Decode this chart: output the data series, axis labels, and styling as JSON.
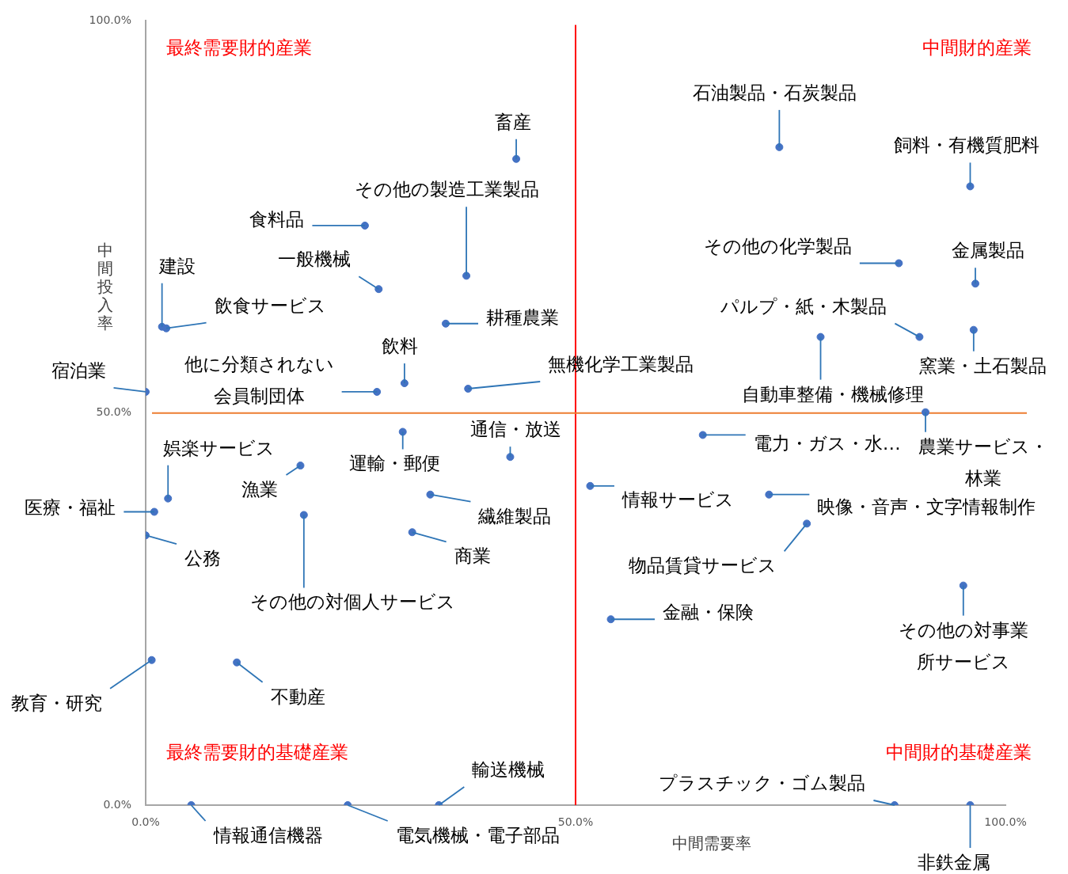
{
  "chart_data": {
    "type": "scatter",
    "xlabel": "中間需要率",
    "ylabel": "中間投入率",
    "x": [
      43.1,
      73.7,
      95.9,
      37.3,
      25.5,
      27.1,
      87.6,
      96.5,
      1.9,
      2.4,
      34.9,
      90.0,
      96.3,
      78.5,
      30.1,
      26.9,
      37.5,
      0,
      90.7,
      64.8,
      29.9,
      42.4,
      2.6,
      18.0,
      1.0,
      33.1,
      51.7,
      72.5,
      76.9,
      31.0,
      0,
      18.4,
      54.1,
      95.1,
      0.7,
      10.6,
      34.1,
      5.3,
      23.5,
      87.1,
      95.9
    ],
    "series": [
      {
        "color": "#4472c4",
        "values": [
          82.4,
          83.9,
          78.9,
          67.5,
          73.9,
          65.8,
          69.1,
          66.5,
          61.0,
          60.8,
          61.4,
          59.7,
          60.6,
          59.7,
          53.8,
          52.7,
          53.1,
          52.7,
          50.1,
          47.2,
          47.6,
          44.4,
          39.1,
          43.3,
          37.4,
          39.6,
          40.7,
          39.6,
          35.9,
          34.8,
          34.4,
          37.0,
          23.7,
          28.0,
          18.5,
          18.2,
          0,
          0,
          0,
          0,
          0
        ]
      }
    ],
    "xlim": [
      0,
      100
    ],
    "ylim": [
      0,
      100
    ],
    "xticks": [
      {
        "value": 0,
        "label": "0.0%"
      },
      {
        "value": 50,
        "label": "50.0%"
      },
      {
        "value": 100,
        "label": "100.0%"
      }
    ],
    "yticks": [
      {
        "value": 0,
        "label": "0.0%"
      },
      {
        "value": 50,
        "label": "50.0%"
      },
      {
        "value": 100,
        "label": "100.0%"
      }
    ],
    "grid": false,
    "legend": false,
    "marker": "circle",
    "ref_lines": [
      {
        "axis": "x",
        "value": 50,
        "color": "#ff0000"
      },
      {
        "axis": "y",
        "value": 50,
        "color": "#ed7d31"
      }
    ],
    "annotations": [
      {
        "text": "畜産",
        "x": 43.1,
        "y": 82.4
      },
      {
        "text": "石油製品・石炭製品",
        "x": 73.7,
        "y": 83.9
      },
      {
        "text": "飼料・有機質肥料",
        "x": 95.9,
        "y": 78.9
      },
      {
        "text": "その他の製造工業製品",
        "x": 37.3,
        "y": 67.5
      },
      {
        "text": "食料品",
        "x": 25.5,
        "y": 73.9
      },
      {
        "text": "一般機械",
        "x": 27.1,
        "y": 65.8
      },
      {
        "text": "その他の化学製品",
        "x": 87.6,
        "y": 69.1
      },
      {
        "text": "金属製品",
        "x": 96.5,
        "y": 66.5
      },
      {
        "text": "建設",
        "x": 1.9,
        "y": 61.0
      },
      {
        "text": "飲食サービス",
        "x": 2.4,
        "y": 60.8
      },
      {
        "text": "耕種農業",
        "x": 34.9,
        "y": 61.4
      },
      {
        "text": "パルプ・紙・木製品",
        "x": 90.0,
        "y": 59.7
      },
      {
        "text": "窯業・土石製品",
        "x": 96.3,
        "y": 60.6
      },
      {
        "text": "自動車整備・機械修理",
        "x": 78.5,
        "y": 59.7
      },
      {
        "text": "飲料",
        "x": 30.1,
        "y": 53.8
      },
      {
        "text": "他に分類されない会員制団体",
        "x": 26.9,
        "y": 52.7
      },
      {
        "text": "無機化学工業製品",
        "x": 37.5,
        "y": 53.1
      },
      {
        "text": "宿泊業",
        "x": 0,
        "y": 52.7
      },
      {
        "text": "農業サービス・林業",
        "x": 90.7,
        "y": 50.1
      },
      {
        "text": "電力・ガス・水…",
        "x": 64.8,
        "y": 47.2
      },
      {
        "text": "運輸・郵便",
        "x": 29.9,
        "y": 47.6
      },
      {
        "text": "通信・放送",
        "x": 42.4,
        "y": 44.4
      },
      {
        "text": "娯楽サービス",
        "x": 2.6,
        "y": 39.1
      },
      {
        "text": "漁業",
        "x": 18.0,
        "y": 43.3
      },
      {
        "text": "医療・福祉",
        "x": 1.0,
        "y": 37.4
      },
      {
        "text": "繊維製品",
        "x": 33.1,
        "y": 39.6
      },
      {
        "text": "情報サービス",
        "x": 51.7,
        "y": 40.7
      },
      {
        "text": "映像・音声・文字情報制作",
        "x": 72.5,
        "y": 39.6
      },
      {
        "text": "物品賃貸サービス",
        "x": 76.9,
        "y": 35.9
      },
      {
        "text": "商業",
        "x": 31.0,
        "y": 34.8
      },
      {
        "text": "公務",
        "x": 0,
        "y": 34.4
      },
      {
        "text": "その他の対個人サービス",
        "x": 18.4,
        "y": 37.0
      },
      {
        "text": "金融・保険",
        "x": 54.1,
        "y": 23.7
      },
      {
        "text": "その他の対事業所サービス",
        "x": 95.1,
        "y": 28.0
      },
      {
        "text": "教育・研究",
        "x": 0.7,
        "y": 18.5
      },
      {
        "text": "不動産",
        "x": 10.6,
        "y": 18.2
      },
      {
        "text": "輸送機械",
        "x": 34.1,
        "y": 0
      },
      {
        "text": "情報通信機器",
        "x": 5.3,
        "y": 0
      },
      {
        "text": "電気機械・電子部品",
        "x": 23.5,
        "y": 0
      },
      {
        "text": "プラスチック・ゴム製品",
        "x": 87.1,
        "y": 0
      },
      {
        "text": "非鉄金属",
        "x": 95.9,
        "y": 0
      },
      "最終需要財的産業",
      "中間財的産業",
      "最終需要財的基礎産業",
      "中間財的基礎産業"
    ]
  }
}
